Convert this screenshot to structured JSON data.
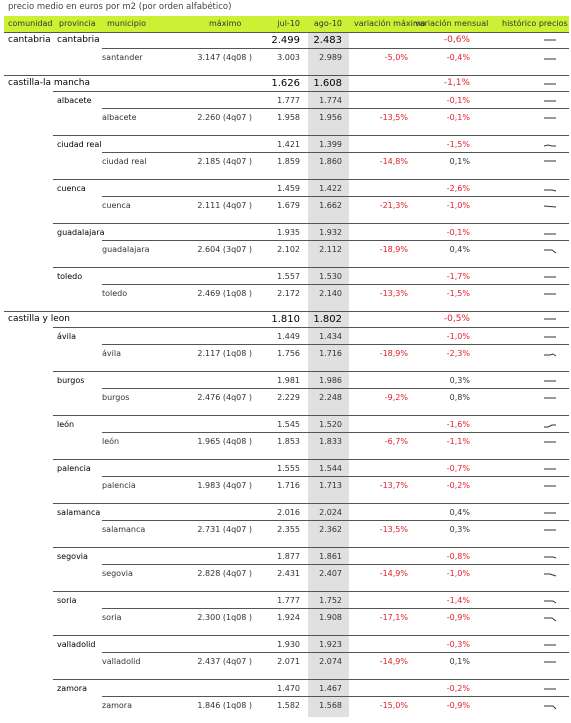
{
  "caption": "precio medio en euros por m2 (por orden alfabético)",
  "headers": {
    "comunidad": "comunidad",
    "provincia": "provincia",
    "municipio": "municipio",
    "maximo": "máximo",
    "jul": "jul-10",
    "ago": "ago-10",
    "var_max": "variación máximo",
    "var_men": "variación mensual",
    "historico": "histórico precios"
  },
  "colors": {
    "header_bg": "#ccf033",
    "shade": "#e0e0e0",
    "negative": "#e0202a"
  },
  "rows": [
    {
      "type": "comunidad",
      "label": "cantabria",
      "provincia": "cantabria",
      "jul": "2.499",
      "ago": "2.483",
      "var_men": "-0,6%"
    },
    {
      "type": "municipio",
      "label": "santander",
      "maximo": "3.147 (4q08 )",
      "jul": "3.003",
      "ago": "2.989",
      "var_max": "-5,0%",
      "var_men": "-0,4%"
    },
    {
      "type": "comunidad",
      "label": "castilla-la mancha",
      "jul": "1.626",
      "ago": "1.608",
      "var_men": "-1,1%"
    },
    {
      "type": "provincia",
      "label": "albacete",
      "jul": "1.777",
      "ago": "1.774",
      "var_men": "-0,1%"
    },
    {
      "type": "municipio",
      "label": "albacete",
      "maximo": "2.260 (4q07 )",
      "jul": "1.958",
      "ago": "1.956",
      "var_max": "-13,5%",
      "var_men": "-0,1%"
    },
    {
      "type": "provincia",
      "label": "ciudad real",
      "jul": "1.421",
      "ago": "1.399",
      "var_men": "-1,5%"
    },
    {
      "type": "municipio",
      "label": "ciudad real",
      "maximo": "2.185 (4q07 )",
      "jul": "1.859",
      "ago": "1.860",
      "var_max": "-14,8%",
      "var_men": "0,1%"
    },
    {
      "type": "provincia",
      "label": "cuenca",
      "jul": "1.459",
      "ago": "1.422",
      "var_men": "-2,6%"
    },
    {
      "type": "municipio",
      "label": "cuenca",
      "maximo": "2.111 (4q07 )",
      "jul": "1.679",
      "ago": "1.662",
      "var_max": "-21,3%",
      "var_men": "-1,0%"
    },
    {
      "type": "provincia",
      "label": "guadalajara",
      "jul": "1.935",
      "ago": "1.932",
      "var_men": "-0,1%"
    },
    {
      "type": "municipio",
      "label": "guadalajara",
      "maximo": "2.604 (3q07 )",
      "jul": "2.102",
      "ago": "2.112",
      "var_max": "-18,9%",
      "var_men": "0,4%"
    },
    {
      "type": "provincia",
      "label": "toledo",
      "jul": "1.557",
      "ago": "1.530",
      "var_men": "-1,7%"
    },
    {
      "type": "municipio",
      "label": "toledo",
      "maximo": "2.469 (1q08 )",
      "jul": "2.172",
      "ago": "2.140",
      "var_max": "-13,3%",
      "var_men": "-1,5%"
    },
    {
      "type": "comunidad",
      "label": "castilla y leon",
      "jul": "1.810",
      "ago": "1.802",
      "var_men": "-0,5%"
    },
    {
      "type": "provincia",
      "label": "ávila",
      "jul": "1.449",
      "ago": "1.434",
      "var_men": "-1,0%"
    },
    {
      "type": "municipio",
      "label": "ávila",
      "maximo": "2.117 (1q08 )",
      "jul": "1.756",
      "ago": "1.716",
      "var_max": "-18,9%",
      "var_men": "-2,3%"
    },
    {
      "type": "provincia",
      "label": "burgos",
      "jul": "1.981",
      "ago": "1.986",
      "var_men": "0,3%"
    },
    {
      "type": "municipio",
      "label": "burgos",
      "maximo": "2.476 (4q07 )",
      "jul": "2.229",
      "ago": "2.248",
      "var_max": "-9,2%",
      "var_men": "0,8%"
    },
    {
      "type": "provincia",
      "label": "león",
      "jul": "1.545",
      "ago": "1.520",
      "var_men": "-1,6%"
    },
    {
      "type": "municipio",
      "label": "león",
      "maximo": "1.965 (4q08 )",
      "jul": "1.853",
      "ago": "1.833",
      "var_max": "-6,7%",
      "var_men": "-1,1%"
    },
    {
      "type": "provincia",
      "label": "palencia",
      "jul": "1.555",
      "ago": "1.544",
      "var_men": "-0,7%"
    },
    {
      "type": "municipio",
      "label": "palencia",
      "maximo": "1.983 (4q07 )",
      "jul": "1.716",
      "ago": "1.713",
      "var_max": "-13,7%",
      "var_men": "-0,2%"
    },
    {
      "type": "provincia",
      "label": "salamanca",
      "jul": "2.016",
      "ago": "2.024",
      "var_men": "0,4%"
    },
    {
      "type": "municipio",
      "label": "salamanca",
      "maximo": "2.731 (4q07 )",
      "jul": "2.355",
      "ago": "2.362",
      "var_max": "-13,5%",
      "var_men": "0,3%"
    },
    {
      "type": "provincia",
      "label": "segovia",
      "jul": "1.877",
      "ago": "1.861",
      "var_men": "-0,8%"
    },
    {
      "type": "municipio",
      "label": "segovia",
      "maximo": "2.828 (4q07 )",
      "jul": "2.431",
      "ago": "2.407",
      "var_max": "-14,9%",
      "var_men": "-1,0%"
    },
    {
      "type": "provincia",
      "label": "soria",
      "jul": "1.777",
      "ago": "1.752",
      "var_men": "-1,4%"
    },
    {
      "type": "municipio",
      "label": "soria",
      "maximo": "2.300 (1q08 )",
      "jul": "1.924",
      "ago": "1.908",
      "var_max": "-17,1%",
      "var_men": "-0,9%"
    },
    {
      "type": "provincia",
      "label": "valladolid",
      "jul": "1.930",
      "ago": "1.923",
      "var_men": "-0,3%"
    },
    {
      "type": "municipio",
      "label": "valladolid",
      "maximo": "2.437 (4q07 )",
      "jul": "2.071",
      "ago": "2.074",
      "var_max": "-14,9%",
      "var_men": "0,1%"
    },
    {
      "type": "provincia",
      "label": "zamora",
      "jul": "1.470",
      "ago": "1.467",
      "var_men": "-0,2%"
    },
    {
      "type": "municipio",
      "label": "zamora",
      "maximo": "1.846 (1q08 )",
      "jul": "1.582",
      "ago": "1.568",
      "var_max": "-15,0%",
      "var_men": "-0,9%"
    }
  ]
}
